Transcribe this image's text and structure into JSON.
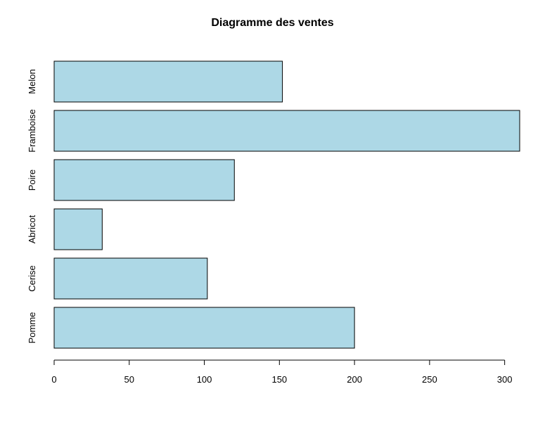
{
  "chart_data": {
    "type": "bar",
    "orientation": "horizontal",
    "title": "Diagramme des ventes",
    "xlabel": "",
    "ylabel": "",
    "categories": [
      "Pomme",
      "Cerise",
      "Abricot",
      "Poire",
      "Framboise",
      "Melon"
    ],
    "values": [
      200,
      102,
      32,
      120,
      310,
      152
    ],
    "x_ticks": [
      0,
      50,
      100,
      150,
      200,
      250,
      300
    ],
    "xlim": [
      0,
      310
    ],
    "bar_color": "#ADD8E6",
    "bar_border_color": "#000000",
    "grid": false,
    "legend": "none"
  }
}
